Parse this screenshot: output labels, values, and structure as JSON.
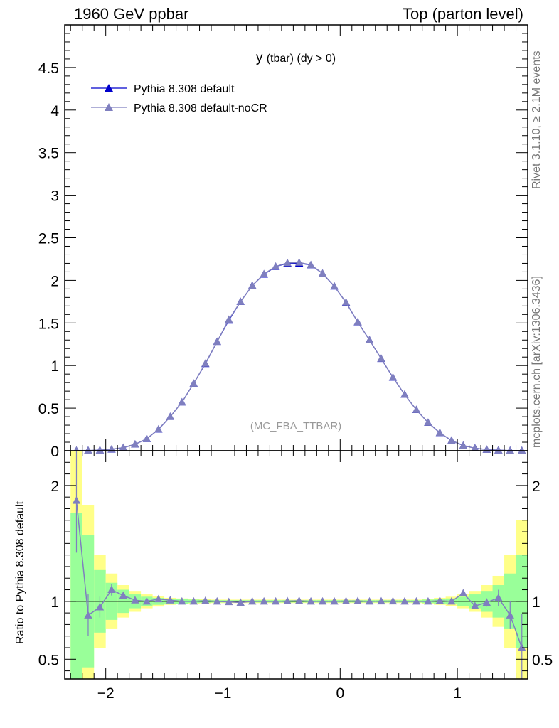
{
  "header": {
    "left": "1960 GeV ppbar",
    "right": "Top (parton level)",
    "rivet": "Rivet 3.1.10, ≥ 2.1M events",
    "mcplots": "mcplots.cern.ch [arXiv:1306.3436]"
  },
  "colors": {
    "series1": "#0000cc",
    "series2": "#7f7fbf",
    "band_inner": "#99ff99",
    "band_outer": "#ffff88"
  },
  "chart_data": [
    {
      "type": "line",
      "title": "y (tbar) (dy > 0)",
      "title_main": "y",
      "title_sub": "(tbar) (dy > 0)",
      "watermark": "(MC_FBA_TTBAR)",
      "xlim": [
        -2.35,
        1.6
      ],
      "ylim": [
        0,
        5
      ],
      "yticks": [
        0,
        0.5,
        1,
        1.5,
        2,
        2.5,
        3,
        3.5,
        4,
        4.5
      ],
      "ytick_labels": [
        "0",
        "0.5",
        "1",
        "1.5",
        "2",
        "2.5",
        "3",
        "3.5",
        "4",
        "4.5"
      ],
      "legend_position": "top-left",
      "x": [
        -2.25,
        -2.15,
        -2.05,
        -1.95,
        -1.85,
        -1.75,
        -1.65,
        -1.55,
        -1.45,
        -1.35,
        -1.25,
        -1.15,
        -1.05,
        -0.95,
        -0.85,
        -0.75,
        -0.65,
        -0.55,
        -0.45,
        -0.35,
        -0.25,
        -0.15,
        -0.05,
        0.05,
        0.15,
        0.25,
        0.35,
        0.45,
        0.55,
        0.65,
        0.75,
        0.85,
        0.95,
        1.05,
        1.15,
        1.25,
        1.35,
        1.45,
        1.55
      ],
      "series": [
        {
          "name": "Pythia 8.308 default",
          "values": [
            0.001,
            0.003,
            0.006,
            0.016,
            0.035,
            0.075,
            0.14,
            0.25,
            0.4,
            0.57,
            0.79,
            1.02,
            1.28,
            1.53,
            1.75,
            1.94,
            2.07,
            2.16,
            2.2,
            2.2,
            2.18,
            2.08,
            1.93,
            1.74,
            1.51,
            1.3,
            1.08,
            0.86,
            0.66,
            0.48,
            0.33,
            0.21,
            0.12,
            0.06,
            0.03,
            0.014,
            0.006,
            0.002,
            0.001
          ]
        },
        {
          "name": "Pythia 8.308 default-noCR",
          "values": [
            0.002,
            0.003,
            0.006,
            0.018,
            0.037,
            0.076,
            0.14,
            0.253,
            0.4,
            0.57,
            0.79,
            1.025,
            1.28,
            1.54,
            1.75,
            1.94,
            2.075,
            2.163,
            2.205,
            2.21,
            2.182,
            2.082,
            1.932,
            1.742,
            1.512,
            1.3,
            1.082,
            0.862,
            0.66,
            0.481,
            0.331,
            0.211,
            0.12,
            0.062,
            0.029,
            0.014,
            0.006,
            0.002,
            0.001
          ]
        }
      ]
    },
    {
      "type": "line",
      "ylabel": "Ratio to Pythia 8.308 default",
      "xlim": [
        -2.35,
        1.6
      ],
      "ylim": [
        0.33,
        2.3
      ],
      "xticks": [
        -2,
        -1,
        0,
        1
      ],
      "xtick_labels": [
        "−2",
        "−1",
        "0",
        "1"
      ],
      "yticks": [
        0.5,
        1,
        2
      ],
      "ytick_labels": [
        "0.5",
        "1",
        "2"
      ],
      "x": [
        -2.25,
        -2.15,
        -2.05,
        -1.95,
        -1.85,
        -1.75,
        -1.65,
        -1.55,
        -1.45,
        -1.35,
        -1.25,
        -1.15,
        -1.05,
        -0.95,
        -0.85,
        -0.75,
        -0.65,
        -0.55,
        -0.45,
        -0.35,
        -0.25,
        -0.15,
        -0.05,
        0.05,
        0.15,
        0.25,
        0.35,
        0.45,
        0.55,
        0.65,
        0.75,
        0.85,
        0.95,
        1.05,
        1.15,
        1.25,
        1.35,
        1.45,
        1.55
      ],
      "band_inner": [
        0.76,
        0.57,
        0.27,
        0.16,
        0.1,
        0.06,
        0.04,
        0.03,
        0.02,
        0.02,
        0.015,
        0.012,
        0.01,
        0.01,
        0.01,
        0.01,
        0.01,
        0.01,
        0.01,
        0.01,
        0.01,
        0.01,
        0.01,
        0.01,
        0.01,
        0.01,
        0.01,
        0.01,
        0.01,
        0.01,
        0.015,
        0.02,
        0.025,
        0.04,
        0.06,
        0.09,
        0.14,
        0.24,
        0.4
      ],
      "band_outer": [
        1.3,
        0.83,
        0.4,
        0.24,
        0.14,
        0.09,
        0.06,
        0.045,
        0.03,
        0.025,
        0.02,
        0.018,
        0.015,
        0.015,
        0.015,
        0.015,
        0.015,
        0.015,
        0.015,
        0.015,
        0.015,
        0.015,
        0.015,
        0.015,
        0.015,
        0.015,
        0.015,
        0.015,
        0.015,
        0.015,
        0.02,
        0.03,
        0.04,
        0.06,
        0.09,
        0.14,
        0.22,
        0.4,
        0.7
      ],
      "series": [
        {
          "name": "Pythia 8.308 default-noCR",
          "values": [
            1.87,
            0.88,
            0.95,
            1.1,
            1.05,
            1.01,
            1.0,
            1.02,
            1.01,
            1.0,
            1.0,
            1.005,
            1.0,
            0.995,
            0.99,
            1.0,
            1.0,
            1.0,
            1.002,
            1.005,
            1.0,
            1.0,
            1.0,
            1.002,
            1.003,
            1.0,
            1.001,
            1.001,
            1.0,
            1.0,
            1.0,
            1.005,
            1.0,
            1.07,
            0.96,
            0.99,
            1.03,
            0.88,
            0.6
          ],
          "errors": [
            0.45,
            0.18,
            0.09,
            0.05,
            0.03,
            0.015,
            0.01,
            0.01,
            0.005,
            0.005,
            0,
            0,
            0,
            0,
            0,
            0,
            0,
            0,
            0,
            0,
            0,
            0,
            0,
            0,
            0,
            0,
            0,
            0,
            0,
            0,
            0,
            0.005,
            0.01,
            0.015,
            0.025,
            0.035,
            0.07,
            0.12,
            0.29
          ]
        }
      ]
    }
  ]
}
